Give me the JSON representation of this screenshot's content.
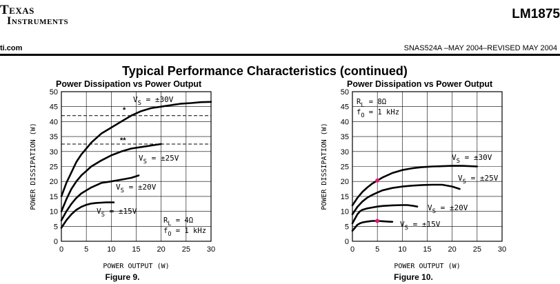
{
  "header": {
    "logo_line1": "Texas",
    "logo_line2": "Instruments",
    "part_number": "LM1875",
    "website": "ti.com",
    "doc_revision": "SNAS524A –MAY 2004–REVISED MAY 2004",
    "section_title": "Typical Performance Characteristics (continued)"
  },
  "chart_data": [
    {
      "type": "line",
      "title": "Power Dissipation vs Power Output",
      "xlabel": "POWER OUTPUT (W)",
      "ylabel": "POWER DISSIPATION (W)",
      "caption": "Figure 9.",
      "xlim": [
        0,
        30
      ],
      "ylim": [
        0,
        50
      ],
      "xticks": [
        0,
        5,
        10,
        15,
        20,
        25,
        30
      ],
      "yticks": [
        0,
        5,
        10,
        15,
        20,
        25,
        30,
        35,
        40,
        45,
        50
      ],
      "grid": true,
      "conditions": {
        "line1": "R",
        "line1_sub": "L",
        "line1_val": " = 4Ω",
        "line2": "f",
        "line2_sub": "O",
        "line2_val": " = 1 kHz"
      },
      "markers": {
        "single": "*",
        "double": "**"
      },
      "reference_lines": [
        42,
        32.5
      ],
      "series": [
        {
          "label_main": "V",
          "label_sub": "S",
          "label_val": " = ±30V",
          "x": [
            0,
            1,
            2,
            3,
            4,
            5,
            6,
            8,
            10,
            12,
            14,
            16,
            18,
            20,
            22,
            24,
            26,
            28,
            30
          ],
          "y": [
            15,
            19.5,
            23,
            26.5,
            29,
            31,
            33,
            36,
            38,
            40,
            42,
            43.5,
            44.5,
            45,
            45.5,
            46,
            46.2,
            46.5,
            46.6
          ]
        },
        {
          "label_main": "V",
          "label_sub": "S",
          "label_val": " = ±25V",
          "x": [
            0,
            1,
            2,
            3,
            4,
            6,
            8,
            10,
            12,
            14,
            16,
            18,
            20
          ],
          "y": [
            10,
            14,
            17.5,
            20,
            22,
            25,
            27,
            28.7,
            30,
            31,
            31.5,
            32,
            32.5
          ]
        },
        {
          "label_main": "V",
          "label_sub": "S",
          "label_val": " = ±20V",
          "x": [
            0,
            1,
            2,
            3,
            4,
            6,
            8,
            10,
            12,
            14,
            15.5
          ],
          "y": [
            7,
            10,
            12.5,
            14.5,
            16,
            18,
            19.5,
            20,
            20.6,
            21.2,
            22
          ]
        },
        {
          "label_main": "V",
          "label_sub": "S",
          "label_val": " = ±15V",
          "x": [
            0,
            1,
            2,
            3,
            4,
            5,
            6,
            7,
            8,
            9,
            10.5
          ],
          "y": [
            4.5,
            7,
            9,
            10.5,
            11.5,
            12.2,
            12.6,
            12.8,
            12.9,
            13,
            13
          ]
        }
      ]
    },
    {
      "type": "line",
      "title": "Power Dissipation vs Power Output",
      "xlabel": "POWER OUTPUT (W)",
      "ylabel": "POWER DISSIPATION (W)",
      "caption": "Figure 10.",
      "xlim": [
        0,
        30
      ],
      "ylim": [
        0,
        50
      ],
      "xticks": [
        0,
        5,
        10,
        15,
        20,
        25,
        30
      ],
      "yticks": [
        0,
        5,
        10,
        15,
        20,
        25,
        30,
        35,
        40,
        45,
        50
      ],
      "grid": true,
      "conditions": {
        "line1": "R",
        "line1_sub": "L",
        "line1_val": " = 8Ω",
        "line2": "f",
        "line2_sub": "O",
        "line2_val": " = 1 kHz"
      },
      "highlight_color": "#e0197d",
      "highlight_points": [
        {
          "x": 5,
          "y": 20.3
        },
        {
          "x": 5,
          "y": 6.8
        }
      ],
      "series": [
        {
          "label_main": "V",
          "label_sub": "S",
          "label_val": " = ±30V",
          "x": [
            0,
            1,
            2,
            3,
            4,
            5,
            6,
            8,
            10,
            12,
            14,
            16,
            18,
            20,
            22,
            25
          ],
          "y": [
            12,
            14.5,
            16.5,
            18,
            19.3,
            20.3,
            21.3,
            22.8,
            23.8,
            24.4,
            24.8,
            25,
            25.1,
            25.2,
            25.2,
            25
          ]
        },
        {
          "label_main": "V",
          "label_sub": "S",
          "label_val": " = ±25V",
          "x": [
            0,
            1,
            2,
            3,
            4,
            5,
            6,
            8,
            10,
            12,
            14,
            16,
            18,
            20,
            21.5
          ],
          "y": [
            9,
            11.5,
            13.3,
            14.6,
            15.5,
            16.3,
            17,
            17.8,
            18.3,
            18.6,
            18.8,
            18.9,
            18.9,
            18.3,
            17.5
          ]
        },
        {
          "label_main": "V",
          "label_sub": "S",
          "label_val": " = ±20V",
          "x": [
            0,
            0.5,
            1,
            1.5,
            2,
            3,
            4,
            5,
            6,
            8,
            10,
            11,
            12,
            13
          ],
          "y": [
            6,
            7.5,
            9,
            10,
            10.5,
            11,
            11.3,
            11.6,
            11.8,
            12,
            12.1,
            12.1,
            11.9,
            11.6
          ]
        },
        {
          "label_main": "V",
          "label_sub": "S",
          "label_val": " = ±15V",
          "x": [
            0,
            0.5,
            1,
            1.5,
            2,
            3,
            4,
            5,
            6,
            7,
            8
          ],
          "y": [
            3.5,
            4.5,
            5.5,
            6,
            6.3,
            6.6,
            6.8,
            6.8,
            6.7,
            6.6,
            6.5
          ]
        }
      ]
    }
  ]
}
